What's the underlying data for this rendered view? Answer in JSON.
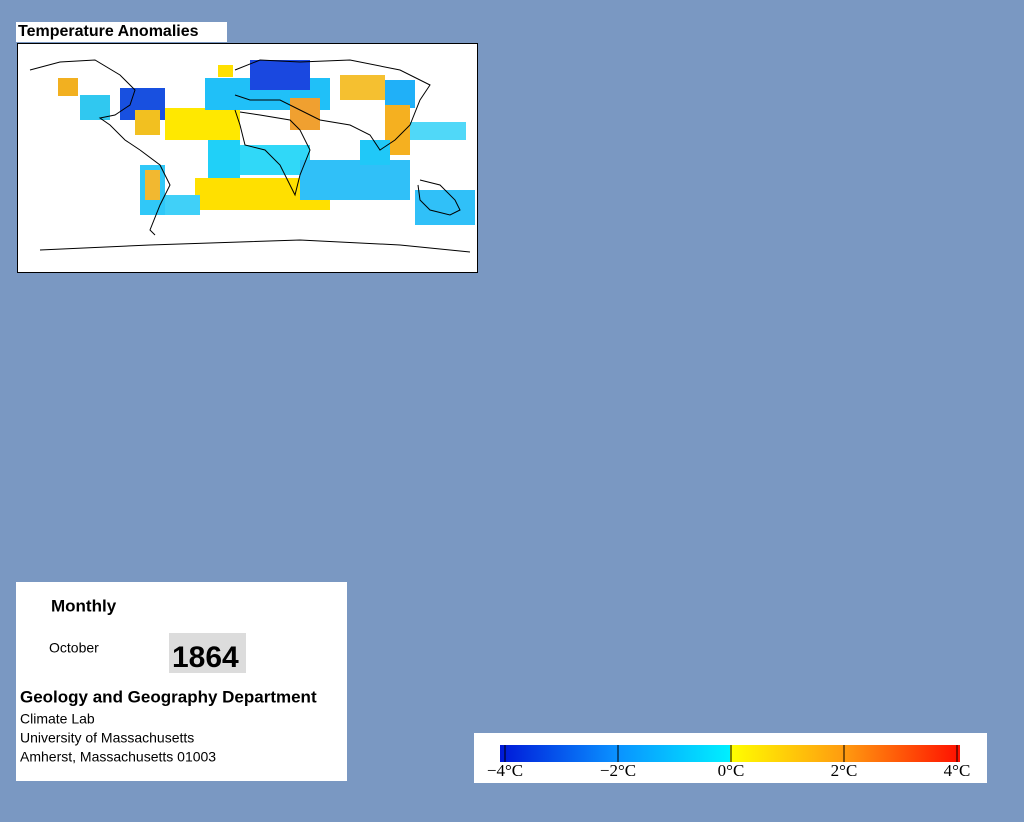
{
  "header": {
    "title": "Temperature Anomalies"
  },
  "panel": {
    "frequency": "Monthly",
    "month": "October",
    "year": "1864",
    "department": "Geology and Geography Department",
    "lab": "Climate Lab",
    "university": "University of Massachusetts",
    "address": "Amherst, Massachusetts 01003"
  },
  "colorbar": {
    "range": [
      -4,
      4
    ],
    "ticks": [
      {
        "value": -4,
        "label": "−4°C"
      },
      {
        "value": -2,
        "label": "−2°C"
      },
      {
        "value": 0,
        "label": "0°C"
      },
      {
        "value": 2,
        "label": "2°C"
      },
      {
        "value": 4,
        "label": "4°C"
      }
    ]
  }
}
